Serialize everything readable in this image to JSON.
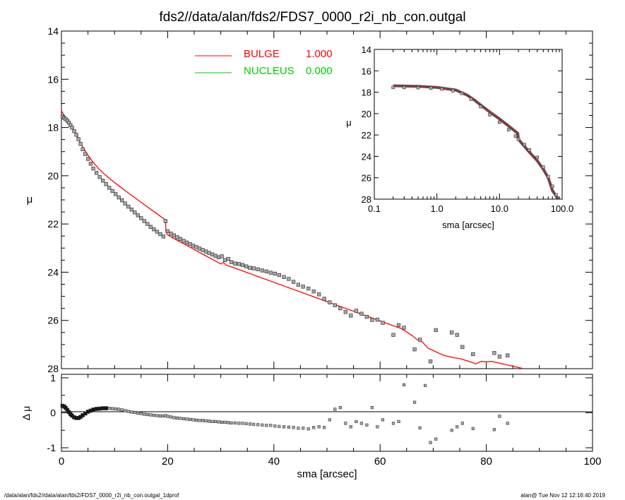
{
  "title": "fds2//data/alan/fds2/FDS7_0000_r2i_nb_con.outgal",
  "footer_left": "/data/alan/fds2//data/alan/fds2/FDS7_0000_r2i_nb_con.outgal_1dprof",
  "footer_right": "alan@  Tue Nov 12 12:16:40 2019",
  "legend": [
    {
      "label": "BULGE",
      "value": "1.000",
      "color": "#ff0000"
    },
    {
      "label": "NUCLEUS",
      "value": "0.000",
      "color": "#00cc00"
    }
  ],
  "chart_data": [
    {
      "type": "scatter",
      "panel": "main",
      "xlabel": "",
      "ylabel": "μ",
      "xlim": [
        0,
        100
      ],
      "ylim": [
        28,
        14
      ],
      "yticks": [
        14,
        16,
        18,
        20,
        22,
        24,
        26,
        28
      ],
      "data_points": {
        "x": [
          0.2,
          0.5,
          0.8,
          1.1,
          1.4,
          1.7,
          2.0,
          2.4,
          2.8,
          3.2,
          3.6,
          4.0,
          4.5,
          5.0,
          5.5,
          6.0,
          6.6,
          7.2,
          7.8,
          8.4,
          9.0,
          9.6,
          10.2,
          10.8,
          11.4,
          12.0,
          12.6,
          13.2,
          13.8,
          14.4,
          15.0,
          15.6,
          16.2,
          16.8,
          17.4,
          18.0,
          18.6,
          19.2,
          19.6,
          20.0,
          20.6,
          21.2,
          21.8,
          22.4,
          23.0,
          23.6,
          24.2,
          24.8,
          25.4,
          26.0,
          26.6,
          27.2,
          27.8,
          28.4,
          29.0,
          29.6,
          30.2,
          30.8,
          31.4,
          32.0,
          32.7,
          33.4,
          34.1,
          34.8,
          35.5,
          36.2,
          37.0,
          37.8,
          38.6,
          39.4,
          40.2,
          41.0,
          41.9,
          42.8,
          43.7,
          44.6,
          45.5,
          46.5,
          47.5,
          48.5,
          49.5,
          50.5,
          51.5,
          52.5,
          53.5,
          54.5,
          55.5,
          56.5,
          57.5,
          58.5,
          59.5,
          60.5,
          62.5,
          63.5,
          64.5,
          66.5,
          67.5,
          69.5,
          70.5,
          73.5,
          74.5,
          75.5,
          77.5,
          81.5,
          82.5,
          84.0
        ],
        "y": [
          17.55,
          17.6,
          17.65,
          17.72,
          17.8,
          17.9,
          18.0,
          18.15,
          18.3,
          18.48,
          18.68,
          18.9,
          19.1,
          19.3,
          19.5,
          19.7,
          19.88,
          20.05,
          20.2,
          20.35,
          20.5,
          20.63,
          20.76,
          20.9,
          21.02,
          21.15,
          21.28,
          21.4,
          21.52,
          21.64,
          21.76,
          21.88,
          22.0,
          22.12,
          22.22,
          22.32,
          22.42,
          22.52,
          21.88,
          22.3,
          22.4,
          22.47,
          22.55,
          22.62,
          22.7,
          22.77,
          22.83,
          22.9,
          22.96,
          23.02,
          23.08,
          23.14,
          23.2,
          23.26,
          23.32,
          23.38,
          23.34,
          23.5,
          23.45,
          23.58,
          23.64,
          23.66,
          23.7,
          23.76,
          23.82,
          23.84,
          23.88,
          23.93,
          23.97,
          24.02,
          24.06,
          24.12,
          24.2,
          24.28,
          24.4,
          24.52,
          24.6,
          24.68,
          24.8,
          24.92,
          25.1,
          25.25,
          25.37,
          25.5,
          25.65,
          25.8,
          25.6,
          25.72,
          25.85,
          25.98,
          25.97,
          26.1,
          26.6,
          26.2,
          26.3,
          27.2,
          26.8,
          27.7,
          26.4,
          26.5,
          26.6,
          27.1,
          27.4,
          27.35,
          27.5,
          27.45
        ]
      },
      "model_line": {
        "name": "BULGE",
        "color": "#ff0000",
        "x": [
          0.0,
          0.5,
          1.0,
          1.5,
          2.0,
          2.5,
          3.0,
          4.0,
          5.0,
          6.0,
          7.0,
          8.0,
          9.0,
          10.0,
          11.0,
          12.0,
          13.0,
          14.0,
          15.0,
          16.0,
          17.0,
          18.0,
          19.0,
          19.6,
          19.7,
          20.0,
          21.0,
          22.0,
          23.0,
          24.0,
          25.0,
          26.0,
          27.0,
          28.0,
          29.0,
          30.0,
          30.5,
          31.0,
          32.0,
          33.0,
          34.0,
          35.0,
          36.0,
          37.0,
          38.0,
          39.0,
          40.0,
          41.0,
          42.0,
          43.0,
          44.0,
          45.0,
          46.0,
          47.0,
          48.0,
          49.0,
          50.0,
          51.0,
          52.0,
          53.0,
          54.0,
          55.0,
          56.0,
          57.0,
          58.0,
          59.0,
          60.0,
          61.0,
          62.0,
          63.0,
          64.0,
          65.0,
          66.0,
          67.0,
          68.0,
          69.0,
          70.0,
          71.0,
          72.0,
          73.0,
          74.0,
          75.0,
          76.0,
          77.0,
          78.0,
          79.0,
          80.0,
          81.0,
          82.0,
          83.0,
          84.0,
          85.0,
          86.0,
          87.0
        ],
        "y": [
          17.3,
          17.5,
          17.65,
          17.82,
          18.0,
          18.2,
          18.4,
          18.8,
          19.15,
          19.45,
          19.7,
          19.92,
          20.1,
          20.28,
          20.45,
          20.62,
          20.78,
          20.94,
          21.1,
          21.26,
          21.42,
          21.58,
          21.74,
          21.85,
          22.35,
          22.45,
          22.58,
          22.7,
          22.82,
          22.94,
          23.06,
          23.18,
          23.3,
          23.42,
          23.54,
          23.66,
          23.6,
          23.7,
          23.78,
          23.86,
          23.94,
          24.02,
          24.1,
          24.18,
          24.26,
          24.34,
          24.42,
          24.5,
          24.58,
          24.66,
          24.74,
          24.82,
          24.9,
          24.98,
          25.06,
          25.14,
          25.22,
          25.3,
          25.38,
          25.46,
          25.54,
          25.62,
          25.7,
          25.78,
          25.86,
          25.94,
          26.02,
          26.1,
          26.18,
          26.26,
          26.34,
          26.48,
          26.62,
          26.8,
          26.9,
          27.15,
          27.25,
          27.35,
          27.45,
          27.5,
          27.55,
          27.58,
          27.65,
          27.72,
          27.8,
          27.7,
          27.72,
          27.7,
          27.75,
          27.8,
          27.85,
          27.9,
          27.95,
          28.05
        ]
      }
    },
    {
      "type": "scatter",
      "panel": "inset",
      "xlabel": "sma [arcsec]",
      "ylabel": "μ",
      "xscale": "log",
      "xlim": [
        0.1,
        100.0
      ],
      "xtick_labels": [
        "0.1",
        "1.0",
        "10.0",
        "100.0"
      ],
      "ylim": [
        28,
        14
      ],
      "yticks": [
        14,
        16,
        18,
        20,
        22,
        24,
        26,
        28
      ],
      "data_points": {
        "x": [
          0.2,
          0.3,
          0.5,
          0.8,
          1.2,
          1.8,
          2.5,
          3.5,
          5,
          7,
          10,
          14,
          18,
          20,
          25,
          30,
          40,
          50,
          60,
          70,
          80
        ],
        "y": [
          17.55,
          17.56,
          17.58,
          17.62,
          17.7,
          17.85,
          18.1,
          18.65,
          19.35,
          20.1,
          20.8,
          21.5,
          22.1,
          22.4,
          22.9,
          23.4,
          24.1,
          25.0,
          25.9,
          26.8,
          27.6
        ]
      },
      "model_line": {
        "x": [
          0.2,
          0.5,
          1,
          2,
          3,
          4,
          5,
          7,
          10,
          15,
          19.6,
          20,
          30,
          40,
          50,
          60,
          70,
          80,
          87
        ],
        "y": [
          17.4,
          17.45,
          17.55,
          17.8,
          18.25,
          18.75,
          19.2,
          19.85,
          20.5,
          21.3,
          21.85,
          22.4,
          23.6,
          24.4,
          25.2,
          26.0,
          27.2,
          27.7,
          28.0
        ]
      }
    },
    {
      "type": "scatter",
      "panel": "residual",
      "xlabel": "sma [arcsec]",
      "ylabel": "Δ μ",
      "xlim": [
        0,
        100
      ],
      "xticks": [
        0,
        20,
        40,
        60,
        80,
        100
      ],
      "ylim": [
        -1.1,
        1.1
      ],
      "yticks": [
        -1,
        0,
        1
      ],
      "x": [
        0.2,
        0.5,
        0.8,
        1.1,
        1.4,
        1.7,
        2.0,
        2.4,
        2.8,
        3.2,
        3.6,
        4.0,
        4.5,
        5.0,
        5.5,
        6.0,
        6.6,
        7.2,
        7.8,
        8.4,
        9.0,
        9.6,
        10.2,
        10.8,
        11.4,
        12.0,
        12.6,
        13.2,
        13.8,
        14.4,
        15.0,
        15.6,
        16.2,
        16.8,
        17.4,
        18.0,
        18.6,
        19.2,
        19.6,
        20.0,
        20.6,
        21.2,
        21.8,
        22.4,
        23.0,
        23.6,
        24.2,
        24.8,
        25.4,
        26.0,
        26.6,
        27.2,
        27.8,
        28.4,
        29.0,
        29.6,
        30.2,
        30.8,
        31.4,
        32.0,
        32.7,
        33.4,
        34.1,
        34.8,
        35.5,
        36.2,
        37.0,
        37.8,
        38.6,
        39.4,
        40.2,
        41.0,
        41.9,
        42.8,
        43.7,
        44.6,
        45.5,
        46.5,
        47.5,
        48.5,
        49.5,
        50.5,
        51.5,
        52.5,
        53.5,
        54.5,
        55.5,
        56.5,
        57.5,
        58.5,
        59.5,
        60.5,
        62.5,
        63.5,
        64.5,
        66.5,
        67.5,
        68.5,
        69.5,
        70.5,
        73.5,
        74.5,
        75.5,
        77.5,
        81.5,
        82.5,
        84.0
      ],
      "y": [
        0.2,
        0.18,
        0.14,
        0.08,
        0.02,
        -0.04,
        -0.08,
        -0.13,
        -0.15,
        -0.15,
        -0.12,
        -0.07,
        -0.02,
        0.03,
        0.06,
        0.09,
        0.11,
        0.12,
        0.13,
        0.13,
        0.13,
        0.12,
        0.11,
        0.1,
        0.08,
        0.06,
        0.04,
        0.02,
        0.01,
        -0.01,
        -0.02,
        -0.04,
        -0.05,
        -0.06,
        -0.07,
        -0.08,
        -0.09,
        -0.09,
        -0.08,
        -0.1,
        -0.12,
        -0.14,
        -0.15,
        -0.16,
        -0.17,
        -0.18,
        -0.19,
        -0.2,
        -0.21,
        -0.22,
        -0.22,
        -0.23,
        -0.24,
        -0.25,
        -0.25,
        -0.26,
        -0.27,
        -0.27,
        -0.28,
        -0.29,
        -0.29,
        -0.3,
        -0.3,
        -0.31,
        -0.32,
        -0.33,
        -0.34,
        -0.35,
        -0.36,
        -0.36,
        -0.38,
        -0.39,
        -0.4,
        -0.41,
        -0.42,
        -0.44,
        -0.44,
        -0.46,
        -0.42,
        -0.4,
        -0.42,
        -0.2,
        0.1,
        0.15,
        -0.3,
        -0.4,
        -0.25,
        -0.3,
        -0.35,
        0.15,
        -0.4,
        -0.2,
        -0.3,
        -0.25,
        0.8,
        0.3,
        -0.43,
        0.78,
        -0.85,
        -0.75,
        -0.5,
        -0.4,
        -0.3,
        -0.45,
        -0.48,
        -0.1,
        -0.3
      ]
    }
  ]
}
